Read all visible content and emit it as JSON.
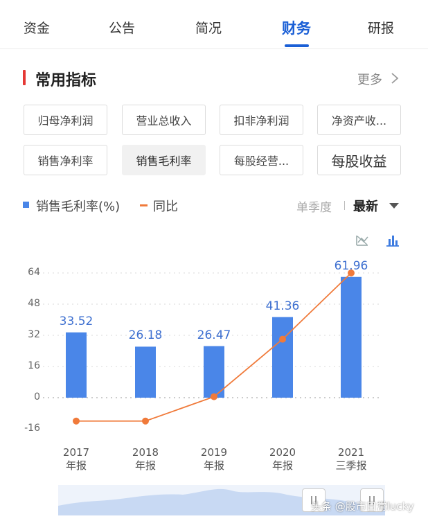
{
  "tabs": [
    {
      "label": "资金",
      "active": false
    },
    {
      "label": "公告",
      "active": false
    },
    {
      "label": "简况",
      "active": false
    },
    {
      "label": "财务",
      "active": true
    },
    {
      "label": "研报",
      "active": false
    }
  ],
  "section": {
    "title": "常用指标",
    "more": "更多",
    "accent_color": "#e53935"
  },
  "chips": [
    {
      "label": "归母净利润"
    },
    {
      "label": "营业总收入"
    },
    {
      "label": "扣非净利润"
    },
    {
      "label": "净资产收..."
    },
    {
      "label": "销售净利率"
    },
    {
      "label": "销售毛利率",
      "selected": true
    },
    {
      "label": "每股经营..."
    },
    {
      "label": "每股收益"
    }
  ],
  "legend": {
    "bar_label": "销售毛利率(%)",
    "line_label": "同比",
    "bar_color": "#4a86e8",
    "line_color": "#f07a3a"
  },
  "period": {
    "option_a": "单季度",
    "option_b": "最新"
  },
  "icons": {
    "line_view": "line-chart-off-icon",
    "bar_view": "bar-chart-icon"
  },
  "chart_data": {
    "type": "bar",
    "categories": [
      [
        "2017",
        "年报"
      ],
      [
        "2018",
        "年报"
      ],
      [
        "2019",
        "年报"
      ],
      [
        "2020",
        "年报"
      ],
      [
        "2021",
        "三季报"
      ]
    ],
    "series": [
      {
        "name": "销售毛利率(%)",
        "type": "bar",
        "values": [
          33.52,
          26.18,
          26.47,
          41.36,
          61.96
        ]
      },
      {
        "name": "同比",
        "type": "line",
        "values": [
          -12,
          -12,
          0.5,
          30,
          64
        ]
      }
    ],
    "value_labels": [
      "33.52",
      "26.18",
      "26.47",
      "41.36",
      "61.96"
    ],
    "yticks": [
      "64",
      "48",
      "32",
      "16",
      "0",
      "-16"
    ],
    "ylim": [
      -16,
      64
    ],
    "grid": true
  },
  "watermark": "头条 @股市日常lucky"
}
